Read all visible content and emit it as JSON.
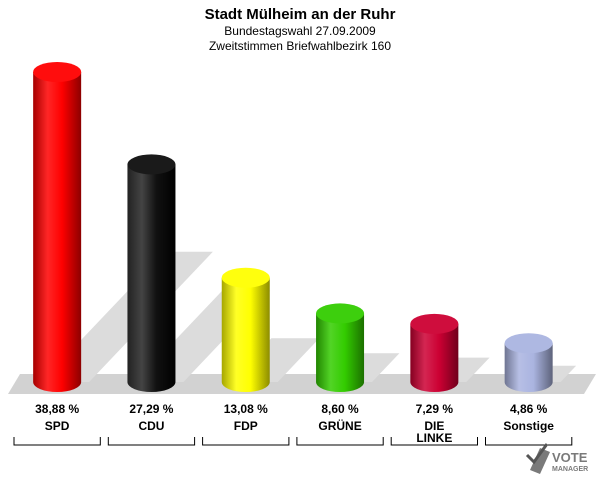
{
  "chart_data": {
    "type": "bar",
    "title": "Stadt Mülheim an der Ruhr",
    "subtitle": [
      "Bundestagswahl 27.09.2009",
      "Zweitstimmen Briefwahlbezirk 160"
    ],
    "categories": [
      "SPD",
      "CDU",
      "FDP",
      "GRÜNE",
      "DIE LINKE",
      "Sonstige"
    ],
    "category_lines": [
      [
        "SPD"
      ],
      [
        "CDU"
      ],
      [
        "FDP"
      ],
      [
        "GRÜNE"
      ],
      [
        "DIE",
        "LINKE"
      ],
      [
        "Sonstige"
      ]
    ],
    "values": [
      38.88,
      27.29,
      13.08,
      8.6,
      7.29,
      4.86
    ],
    "value_labels": [
      "38,88 %",
      "27,29 %",
      "13,08 %",
      "8,60 %",
      "7,29 %",
      "4,86 %"
    ],
    "colors": [
      "#ff0000",
      "#000000",
      "#ffff00",
      "#33cc00",
      "#cc0033",
      "#aab4e0"
    ],
    "ylim": [
      0,
      40
    ],
    "grid": false,
    "legend": "none"
  },
  "logo": {
    "line1": "VOTE",
    "line2": "MANAGER"
  }
}
